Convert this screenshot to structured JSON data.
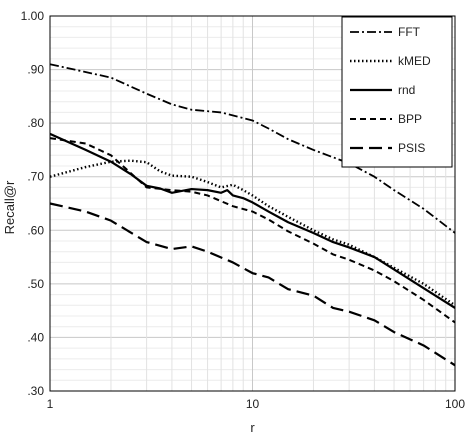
{
  "chart_data": {
    "type": "line",
    "xlabel": "r",
    "ylabel": "Recall@r",
    "xscale": "log",
    "xlim": [
      1,
      100
    ],
    "ylim": [
      0.3,
      1.0
    ],
    "x_ticks": [
      "1",
      "10",
      "100"
    ],
    "y_ticks": [
      "1.00",
      ".90",
      ".80",
      ".70",
      ".60",
      ".50",
      ".40",
      ".30"
    ],
    "grid": "on (major and minor)",
    "legend_position": "top-right",
    "series": [
      {
        "name": "FFT",
        "style": "dash-dot",
        "x": [
          1,
          2,
          3,
          4,
          5,
          7,
          10,
          12,
          15,
          20,
          30,
          40,
          50,
          70,
          100
        ],
        "y": [
          0.91,
          0.885,
          0.855,
          0.835,
          0.825,
          0.82,
          0.805,
          0.79,
          0.77,
          0.75,
          0.725,
          0.7,
          0.675,
          0.64,
          0.595
        ]
      },
      {
        "name": "kMED",
        "style": "dotted",
        "x": [
          1,
          1.5,
          2,
          2.5,
          3,
          3.5,
          4,
          5,
          6,
          7,
          8,
          9,
          10,
          12,
          15,
          20,
          25,
          30,
          40,
          50,
          70,
          100
        ],
        "y": [
          0.7,
          0.718,
          0.728,
          0.73,
          0.727,
          0.71,
          0.702,
          0.7,
          0.69,
          0.68,
          0.685,
          0.675,
          0.665,
          0.645,
          0.625,
          0.6,
          0.583,
          0.573,
          0.55,
          0.53,
          0.5,
          0.46
        ]
      },
      {
        "name": "rnd",
        "style": "solid",
        "x": [
          1,
          1.5,
          2,
          2.5,
          3,
          3.5,
          4,
          5,
          6,
          7,
          7.5,
          8,
          9,
          10,
          12,
          15,
          20,
          25,
          30,
          40,
          50,
          70,
          100
        ],
        "y": [
          0.78,
          0.75,
          0.728,
          0.705,
          0.683,
          0.678,
          0.67,
          0.677,
          0.675,
          0.67,
          0.675,
          0.665,
          0.66,
          0.652,
          0.635,
          0.615,
          0.595,
          0.578,
          0.568,
          0.55,
          0.527,
          0.492,
          0.455
        ]
      },
      {
        "name": "BPP",
        "style": "short-dash",
        "x": [
          1,
          1.5,
          2,
          3,
          4,
          5,
          6,
          8,
          10,
          12,
          15,
          20,
          25,
          30,
          40,
          50,
          70,
          100
        ],
        "y": [
          0.772,
          0.762,
          0.74,
          0.68,
          0.675,
          0.672,
          0.665,
          0.645,
          0.635,
          0.62,
          0.598,
          0.575,
          0.555,
          0.545,
          0.525,
          0.505,
          0.47,
          0.428
        ]
      },
      {
        "name": "PSIS",
        "style": "long-dash",
        "x": [
          1,
          1.5,
          2,
          3,
          4,
          5,
          6,
          8,
          10,
          12,
          15,
          20,
          25,
          30,
          40,
          50,
          70,
          100
        ],
        "y": [
          0.65,
          0.635,
          0.618,
          0.578,
          0.565,
          0.57,
          0.56,
          0.54,
          0.52,
          0.512,
          0.49,
          0.478,
          0.455,
          0.448,
          0.432,
          0.41,
          0.385,
          0.348
        ]
      }
    ]
  }
}
